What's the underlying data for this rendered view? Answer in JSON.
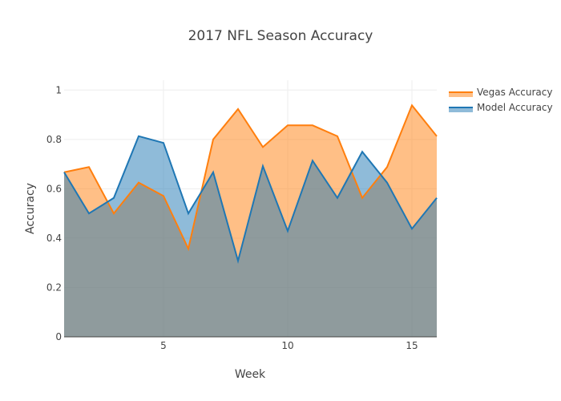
{
  "chart_data": {
    "type": "area",
    "title": "2017 NFL Season Accuracy",
    "xlabel": "Week",
    "ylabel": "Accuracy",
    "xlim": [
      1,
      16
    ],
    "ylim": [
      0,
      1.04
    ],
    "x_ticks": [
      5,
      10,
      15
    ],
    "y_ticks": [
      0,
      0.2,
      0.4,
      0.6,
      0.8,
      1
    ],
    "x_tick_labels": [
      "5",
      "10",
      "15"
    ],
    "y_tick_labels": [
      "0",
      "0.2",
      "0.4",
      "0.6",
      "0.8",
      "1"
    ],
    "grid": true,
    "legend_position": "top-right",
    "x": [
      1,
      2,
      3,
      4,
      5,
      6,
      7,
      8,
      9,
      10,
      11,
      12,
      13,
      14,
      15,
      16
    ],
    "series": [
      {
        "name": "Vegas Accuracy",
        "color": "#ff7f0e",
        "fill": "rgba(255,127,14,0.5)",
        "values": [
          0.667,
          0.688,
          0.5,
          0.625,
          0.571,
          0.357,
          0.8,
          0.923,
          0.769,
          0.857,
          0.857,
          0.813,
          0.563,
          0.688,
          0.938,
          0.813
        ]
      },
      {
        "name": "Model Accuracy",
        "color": "#1f77b4",
        "fill": "rgba(31,119,180,0.5)",
        "values": [
          0.667,
          0.5,
          0.563,
          0.813,
          0.786,
          0.5,
          0.667,
          0.308,
          0.692,
          0.429,
          0.714,
          0.563,
          0.75,
          0.625,
          0.438,
          0.563
        ]
      }
    ]
  }
}
